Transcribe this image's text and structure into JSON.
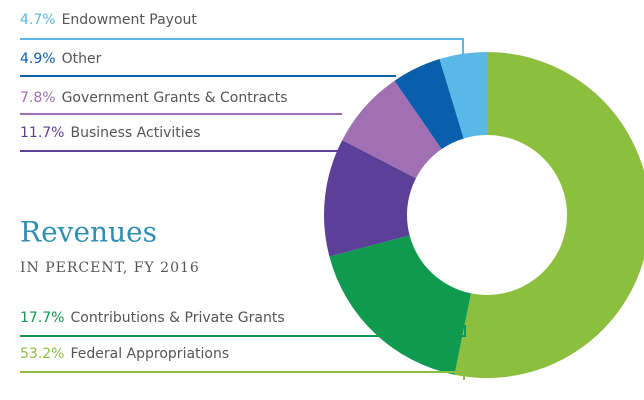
{
  "chart_data": {
    "type": "donut",
    "title": "Revenues",
    "subtitle": "IN PERCENT, FY 2016",
    "categories": [
      "Federal Appropriations",
      "Contributions & Private Grants",
      "Business Activities",
      "Government Grants & Contracts",
      "Other",
      "Endowment Payout"
    ],
    "values": [
      53.2,
      17.7,
      11.7,
      7.8,
      4.9,
      4.7
    ],
    "value_labels": [
      "53.2%",
      "17.7%",
      "11.7%",
      "7.8%",
      "4.9%",
      "4.7%"
    ],
    "colors": [
      "#8dbf3f",
      "#0f9a4f",
      "#5b3f99",
      "#a070b3",
      "#0a5fad",
      "#5ab8e8"
    ]
  }
}
